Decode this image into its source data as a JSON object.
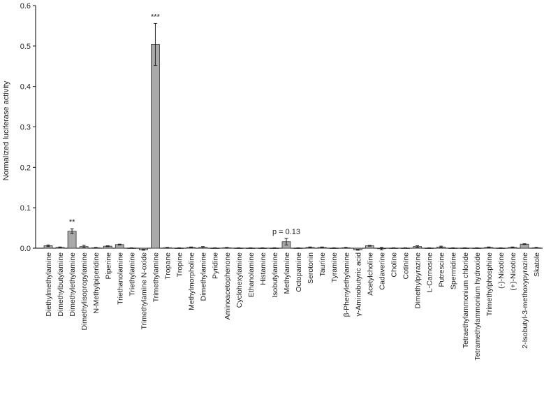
{
  "chart_data": {
    "type": "bar",
    "title": "",
    "xlabel": "",
    "ylabel": "Normalized luciferase activity",
    "ylim": [
      0,
      0.6
    ],
    "yticks": [
      "0.0",
      "0.1",
      "0.2",
      "0.3",
      "0.4",
      "0.5",
      "0.6"
    ],
    "grid": false,
    "bar_color": "#a9a9a9",
    "categories": [
      "Diethylmethylamine",
      "Dimethylbutylamine",
      "Dimethylethylamine",
      "Dimethylisopropylamine",
      "N-Methylpiperidine",
      "Piperine",
      "Triethanolamine",
      "Triethylamine",
      "Trimethylamine N-oxide",
      "Trimethylamine",
      "Tropane",
      "Tropine",
      "Methylmorpholine",
      "Dimethylamine",
      "Pyridine",
      "Aminoacetophenone",
      "Cyclohexylamine",
      "Ethanolamine",
      "Histamine",
      "Isobutylamine",
      "Methylamine",
      "Octopamine",
      "Serotonin",
      "Taurine",
      "Tyramine",
      "β-Phenylethylamine",
      "γ-Aminobutyric acid",
      "Acetylcholine",
      "Cadaverine",
      "Choline",
      "Cotinine",
      "Dimethylpyrazine",
      "L-Carnosine",
      "Putrescine",
      "Spermidine",
      "Tetraethylammonium chloride",
      "Tetramethylammonium hydroxide",
      "Trimethylphosphine",
      "(-)-Nicotine",
      "(+)-Nicotine",
      "2-Isobutyl-3-methoxypyrazine",
      "Skatole"
    ],
    "values": [
      0.006,
      0.002,
      0.042,
      0.004,
      0.001,
      0.005,
      0.009,
      0.0005,
      -0.004,
      0.504,
      0.001,
      0.0005,
      0.002,
      0.002,
      0.0005,
      0.001,
      0.0005,
      0.0005,
      0.0005,
      0.0005,
      0.016,
      0.0005,
      0.002,
      0.002,
      0.0005,
      0.001,
      -0.004,
      0.006,
      -0.001,
      0.0005,
      0.0005,
      0.004,
      0.0005,
      0.003,
      0.0005,
      0.0005,
      0.0005,
      0.002,
      0.0005,
      0.002,
      0.01,
      0.001
    ],
    "errors": [
      0.002,
      0.001,
      0.006,
      0.003,
      0.001,
      0.001,
      0.001,
      0.0005,
      0.001,
      0.052,
      0.001,
      0.0005,
      0.001,
      0.002,
      0.0005,
      0.001,
      0.0005,
      0.0005,
      0.0005,
      0.0005,
      0.008,
      0.0005,
      0.001,
      0.001,
      0.0005,
      0.001,
      0.001,
      0.001,
      0.003,
      0.0005,
      0.0005,
      0.002,
      0.0005,
      0.002,
      0.0005,
      0.0005,
      0.0005,
      0.001,
      0.0005,
      0.001,
      0.001,
      0.001
    ],
    "annotations": [
      {
        "category": "Dimethylethylamine",
        "text": "**"
      },
      {
        "category": "Trimethylamine",
        "text": "***"
      },
      {
        "category": "Methylamine",
        "text": "p = 0.13"
      }
    ]
  }
}
